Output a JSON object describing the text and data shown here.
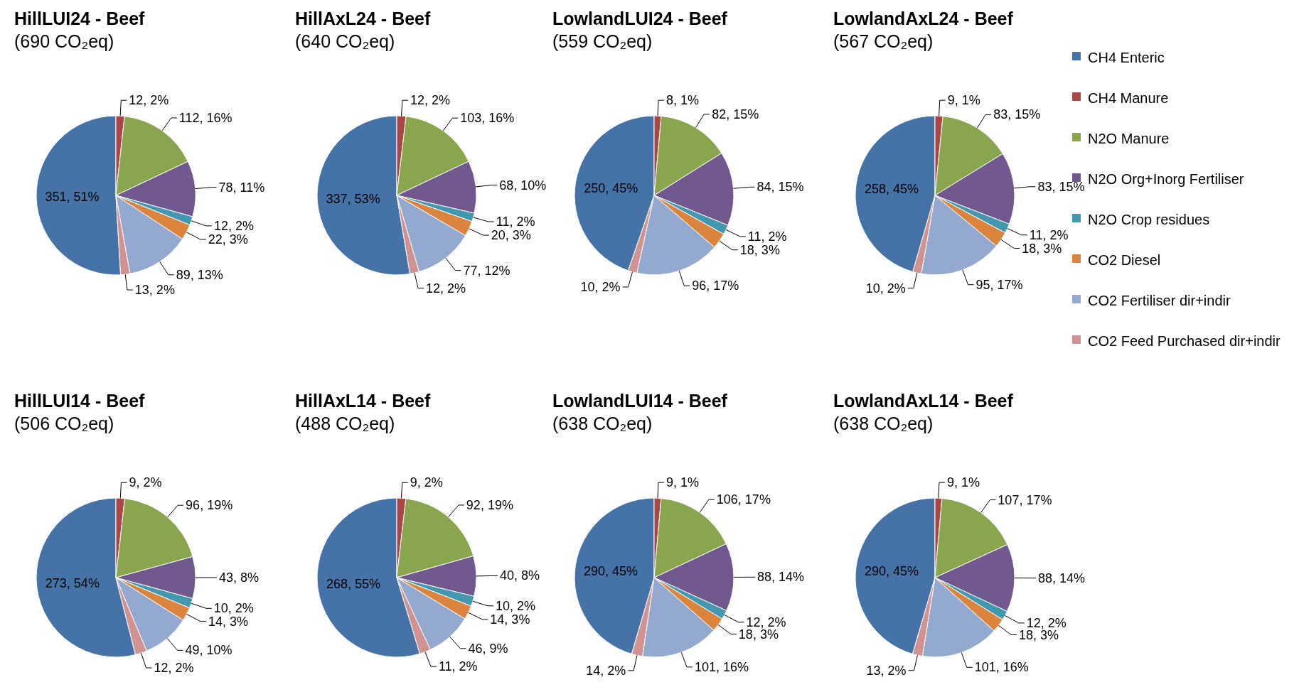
{
  "chart_data": [
    {
      "type": "pie",
      "title": "HillLUI24 - Beef",
      "subtitle": "(690 CO₂eq)",
      "categories": [
        "CH4 Enteric",
        "CH4 Manure",
        "N2O Manure",
        "N2O Org+Inorg Fertiliser",
        "N2O Crop residues",
        "CO2 Diesel",
        "CO2 Fertiliser dir+indir",
        "CO2 Feed Purchased dir+indir"
      ],
      "colors": [
        "#4572a7",
        "#aa4643",
        "#89a54e",
        "#71588f",
        "#4198af",
        "#db843d",
        "#93a9cf",
        "#d19392"
      ],
      "values": [
        351,
        12,
        112,
        78,
        12,
        22,
        89,
        13
      ],
      "value_labels": [
        "351, 51%",
        "12, 2%",
        "112, 16%",
        "78, 11%",
        "12, 2%",
        "22, 3%",
        "89, 13%",
        "13, 2%"
      ],
      "legend": "right"
    },
    {
      "type": "pie",
      "title": "HillAxL24 - Beef",
      "subtitle": "(640 CO₂eq)",
      "categories": [
        null,
        null,
        null,
        null,
        null,
        null,
        null,
        null
      ],
      "colors": [
        "#4572a7",
        "#aa4643",
        "#89a54e",
        "#71588f",
        "#4198af",
        "#db843d",
        "#93a9cf",
        "#d19392"
      ],
      "values": [
        337,
        12,
        103,
        68,
        11,
        20,
        77,
        12
      ],
      "value_labels": [
        "337, 53%",
        "12, 2%",
        "103, 16%",
        "68, 10%",
        "11, 2%",
        "20, 3%",
        "77, 12%",
        "12, 2%"
      ]
    },
    {
      "type": "pie",
      "title": "LowlandLUI24 - Beef",
      "subtitle": "(559 CO₂eq)",
      "categories": [
        null,
        null,
        null,
        null,
        null,
        null,
        null,
        null
      ],
      "colors": [
        "#4572a7",
        "#aa4643",
        "#89a54e",
        "#71588f",
        "#4198af",
        "#db843d",
        "#93a9cf",
        "#d19392"
      ],
      "values": [
        250,
        8,
        82,
        84,
        11,
        18,
        96,
        10
      ],
      "value_labels": [
        "250, 45%",
        "8, 1%",
        "82, 15%",
        "84, 15%",
        "11, 2%",
        "18, 3%",
        "96, 17%",
        "10, 2%"
      ]
    },
    {
      "type": "pie",
      "title": "LowlandAxL24 - Beef",
      "subtitle": "(567 CO₂eq)",
      "categories": [
        null,
        null,
        null,
        null,
        null,
        null,
        null,
        null
      ],
      "colors": [
        "#4572a7",
        "#aa4643",
        "#89a54e",
        "#71588f",
        "#4198af",
        "#db843d",
        "#93a9cf",
        "#d19392"
      ],
      "values": [
        258,
        9,
        83,
        83,
        11,
        18,
        95,
        10
      ],
      "value_labels": [
        "258, 45%",
        "9, 1%",
        "83, 15%",
        "83, 15%",
        "11, 2%",
        "18, 3%",
        "95, 17%",
        "10, 2%"
      ]
    },
    {
      "type": "pie",
      "title": "HillLUI14 - Beef",
      "subtitle": "(506 CO₂eq)",
      "categories": [
        null,
        null,
        null,
        null,
        null,
        null,
        null,
        null
      ],
      "colors": [
        "#4572a7",
        "#aa4643",
        "#89a54e",
        "#71588f",
        "#4198af",
        "#db843d",
        "#93a9cf",
        "#d19392"
      ],
      "values": [
        273,
        9,
        96,
        43,
        10,
        14,
        49,
        12
      ],
      "value_labels": [
        "273, 54%",
        "9, 2%",
        "96, 19%",
        "43, 8%",
        "10, 2%",
        "14, 3%",
        "49, 10%",
        "12, 2%"
      ]
    },
    {
      "type": "pie",
      "title": "HillAxL14 - Beef",
      "subtitle": "(488 CO₂eq)",
      "categories": [
        null,
        null,
        null,
        null,
        null,
        null,
        null,
        null
      ],
      "colors": [
        "#4572a7",
        "#aa4643",
        "#89a54e",
        "#71588f",
        "#4198af",
        "#db843d",
        "#93a9cf",
        "#d19392"
      ],
      "values": [
        268,
        9,
        92,
        40,
        10,
        14,
        46,
        11
      ],
      "value_labels": [
        "268, 55%",
        "9, 2%",
        "92, 19%",
        "40, 8%",
        "10, 2%",
        "14, 3%",
        "46, 9%",
        "11, 2%"
      ]
    },
    {
      "type": "pie",
      "title": "LowlandLUI14 - Beef",
      "subtitle": "(638 CO₂eq)",
      "categories": [
        null,
        null,
        null,
        null,
        null,
        null,
        null,
        null
      ],
      "colors": [
        "#4572a7",
        "#aa4643",
        "#89a54e",
        "#71588f",
        "#4198af",
        "#db843d",
        "#93a9cf",
        "#d19392"
      ],
      "values": [
        290,
        9,
        106,
        88,
        12,
        18,
        101,
        14
      ],
      "value_labels": [
        "290, 45%",
        "9, 1%",
        "106, 17%",
        "88, 14%",
        "12, 2%",
        "18, 3%",
        "101, 16%",
        "14, 2%"
      ]
    },
    {
      "type": "pie",
      "title": "LowlandAxL14 - Beef",
      "subtitle": "(638 CO₂eq)",
      "categories": [
        null,
        null,
        null,
        null,
        null,
        null,
        null,
        null
      ],
      "colors": [
        "#4572a7",
        "#aa4643",
        "#89a54e",
        "#71588f",
        "#4198af",
        "#db843d",
        "#93a9cf",
        "#d19392"
      ],
      "values": [
        290,
        9,
        107,
        88,
        12,
        18,
        101,
        13
      ],
      "value_labels": [
        "290, 45%",
        "9, 1%",
        "107, 17%",
        "88, 14%",
        "12, 2%",
        "18, 3%",
        "101, 16%",
        "13, 2%"
      ]
    }
  ]
}
